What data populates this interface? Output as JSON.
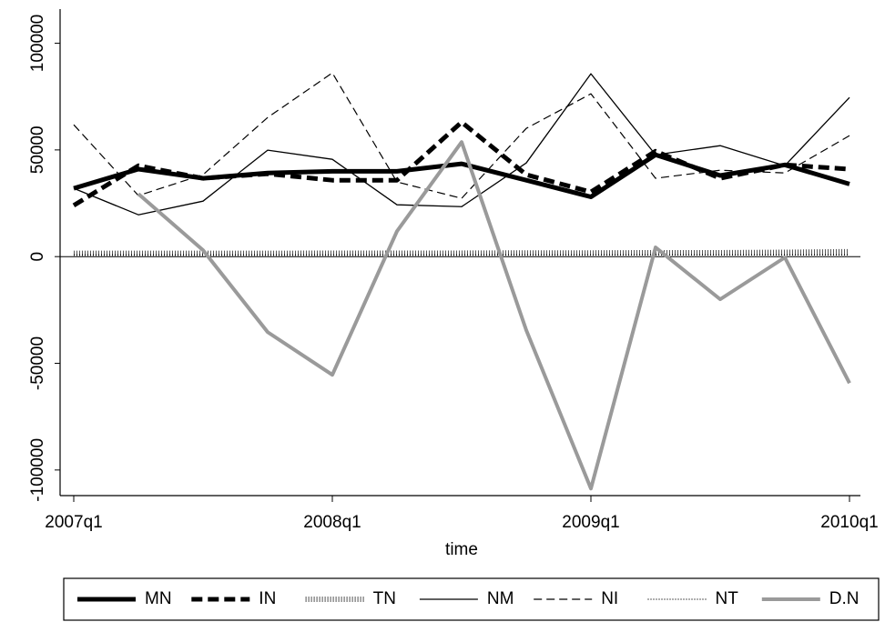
{
  "chart_data": {
    "type": "line",
    "x_label": "time",
    "categories": [
      "2007q1",
      null,
      null,
      null,
      "2008q1",
      null,
      null,
      null,
      "2009q1",
      null,
      null,
      null,
      "2010q1"
    ],
    "ylim": [
      -112000,
      116000
    ],
    "yticks": [
      -100000,
      -50000,
      0,
      50000,
      100000
    ],
    "zero_line": true,
    "series": [
      {
        "name": "MN",
        "color": "#000000",
        "width": 5,
        "dash": "none",
        "values": [
          32000,
          41000,
          36700,
          39200,
          40000,
          40000,
          43500,
          35800,
          28000,
          47700,
          38000,
          43000,
          34000
        ]
      },
      {
        "name": "IN",
        "color": "#000000",
        "width": 5,
        "dash": "12,6",
        "values": [
          24000,
          42600,
          36700,
          38800,
          35800,
          35800,
          63000,
          38400,
          30300,
          49400,
          36700,
          43000,
          41000
        ]
      },
      {
        "name": "TN",
        "color": "#555555",
        "width": 6,
        "dash": "1,2",
        "values": [
          1500,
          1500,
          1500,
          1500,
          1600,
          1600,
          1600,
          1700,
          1700,
          1800,
          1800,
          2000,
          2300
        ]
      },
      {
        "name": "NM",
        "color": "#000000",
        "width": 1.3,
        "dash": "none",
        "values": [
          32000,
          19600,
          26000,
          49900,
          45600,
          24300,
          23400,
          43900,
          85700,
          47700,
          52000,
          42600,
          74600
        ]
      },
      {
        "name": "NI",
        "color": "#000000",
        "width": 1.2,
        "dash": "9,5",
        "values": [
          61800,
          28600,
          38400,
          65200,
          86100,
          35000,
          27300,
          60100,
          76300,
          36700,
          40500,
          39200,
          56700
        ]
      },
      {
        "name": "NT",
        "color": "#000000",
        "width": 1.3,
        "dash": "1,2",
        "values": [
          800,
          800,
          800,
          800,
          800,
          800,
          800,
          800,
          800,
          800,
          800,
          800,
          800
        ]
      },
      {
        "name": "D.N",
        "color": "#9a9a9a",
        "width": 4,
        "dash": "none",
        "values": [
          null,
          29400,
          3000,
          -35400,
          -55400,
          11900,
          53700,
          -34500,
          -108700,
          4300,
          -20000,
          -400,
          -59300
        ]
      }
    ]
  }
}
